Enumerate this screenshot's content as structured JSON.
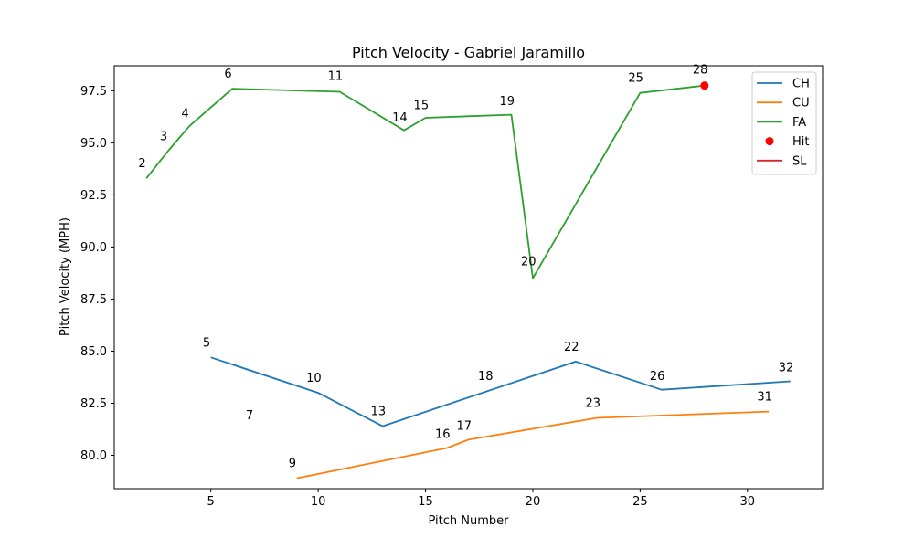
{
  "chart_data": {
    "type": "line",
    "title": "Pitch Velocity - Gabriel Jaramillo",
    "xlabel": "Pitch Number",
    "ylabel": "Pitch Velocity (MPH)",
    "xlim": [
      0.5,
      33.5
    ],
    "ylim": [
      78.4,
      98.7
    ],
    "xticks": [
      5,
      10,
      15,
      20,
      25,
      30
    ],
    "yticks": [
      80.0,
      82.5,
      85.0,
      87.5,
      90.0,
      92.5,
      95.0,
      97.5
    ],
    "legend": "top-right",
    "series": [
      {
        "name": "CH",
        "color": "#1f77b4",
        "x": [
          5,
          10,
          13,
          22,
          26,
          32
        ],
        "y": [
          84.7,
          83.0,
          81.4,
          84.5,
          83.15,
          83.55
        ]
      },
      {
        "name": "CU",
        "color": "#ff7f0e",
        "x": [
          9,
          16,
          17,
          23,
          31
        ],
        "y": [
          78.9,
          80.35,
          80.75,
          81.8,
          82.1
        ]
      },
      {
        "name": "FA",
        "color": "#2ca02c",
        "x": [
          2,
          3,
          4,
          6,
          11,
          14,
          15,
          19,
          20,
          25,
          28
        ],
        "y": [
          93.3,
          94.6,
          95.8,
          97.6,
          97.45,
          95.6,
          96.2,
          96.35,
          88.5,
          97.4,
          97.75
        ]
      },
      {
        "name": "Hit",
        "color": "#ff0000",
        "style": "marker",
        "x": [
          28
        ],
        "y": [
          97.75
        ]
      },
      {
        "name": "SL",
        "color": "#d62728",
        "x": [],
        "y": []
      }
    ],
    "annotations": [
      {
        "text": "2",
        "x": 1.8,
        "y": 94.0
      },
      {
        "text": "3",
        "x": 2.8,
        "y": 95.3
      },
      {
        "text": "4",
        "x": 3.8,
        "y": 96.4
      },
      {
        "text": "5",
        "x": 4.8,
        "y": 85.4
      },
      {
        "text": "6",
        "x": 5.8,
        "y": 98.3
      },
      {
        "text": "7",
        "x": 6.8,
        "y": 81.9
      },
      {
        "text": "9",
        "x": 8.8,
        "y": 79.6
      },
      {
        "text": "10",
        "x": 9.8,
        "y": 83.7
      },
      {
        "text": "11",
        "x": 10.8,
        "y": 98.2
      },
      {
        "text": "13",
        "x": 12.8,
        "y": 82.1
      },
      {
        "text": "14",
        "x": 13.8,
        "y": 96.2
      },
      {
        "text": "15",
        "x": 14.8,
        "y": 96.8
      },
      {
        "text": "16",
        "x": 15.8,
        "y": 81.0
      },
      {
        "text": "17",
        "x": 16.8,
        "y": 81.4
      },
      {
        "text": "18",
        "x": 17.8,
        "y": 83.8
      },
      {
        "text": "19",
        "x": 18.8,
        "y": 97.0
      },
      {
        "text": "20",
        "x": 19.8,
        "y": 89.3
      },
      {
        "text": "22",
        "x": 21.8,
        "y": 85.2
      },
      {
        "text": "23",
        "x": 22.8,
        "y": 82.5
      },
      {
        "text": "25",
        "x": 24.8,
        "y": 98.1
      },
      {
        "text": "26",
        "x": 25.8,
        "y": 83.8
      },
      {
        "text": "28",
        "x": 27.8,
        "y": 98.5
      },
      {
        "text": "31",
        "x": 30.8,
        "y": 82.8
      },
      {
        "text": "32",
        "x": 31.8,
        "y": 84.2
      }
    ]
  }
}
